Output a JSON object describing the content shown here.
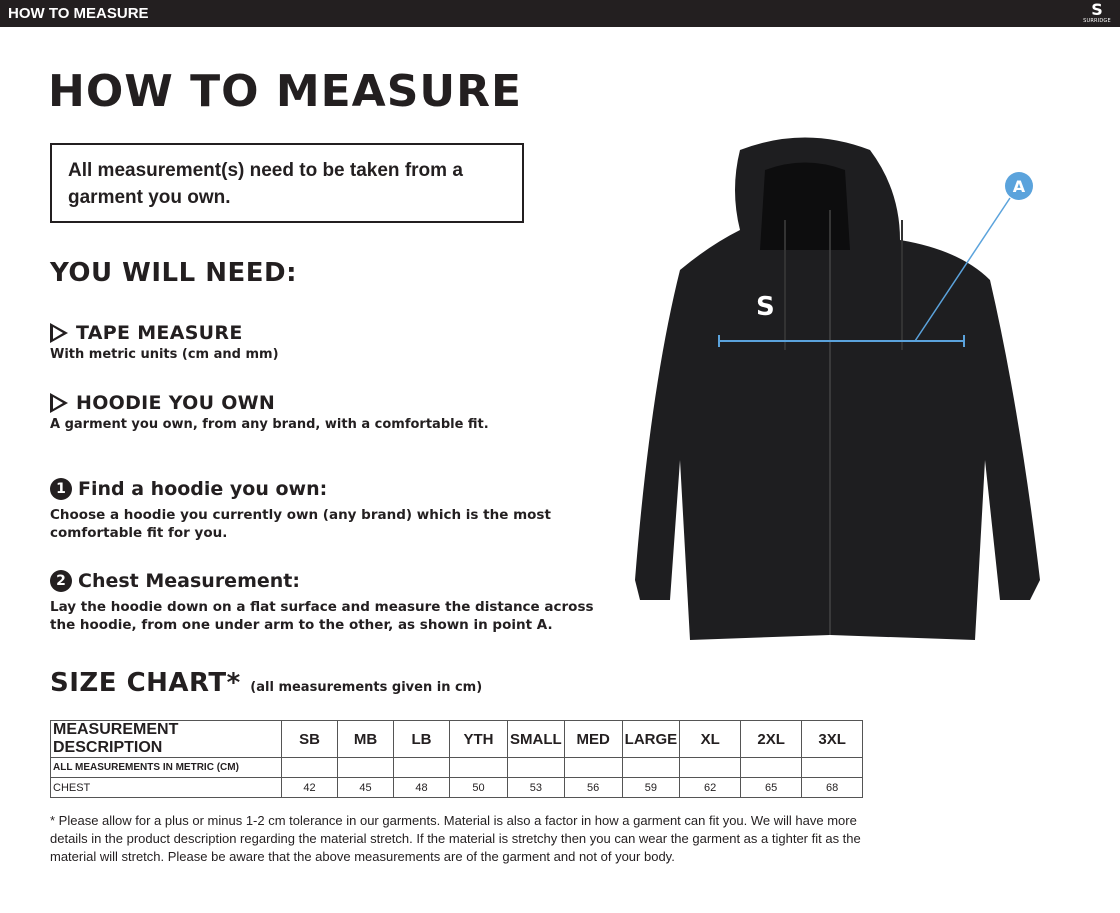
{
  "header": {
    "title": "HOW TO MEASURE",
    "logo_text": "SURRIDGE"
  },
  "title": "HOW TO MEASURE",
  "notice": "All measurement(s) need to be taken from a garment you own.",
  "need": {
    "heading": "YOU WILL NEED:",
    "items": [
      {
        "title": "TAPE MEASURE",
        "desc": "With metric units (cm and mm)"
      },
      {
        "title": "HOODIE YOU OWN",
        "desc": "A garment you own, from any brand, with a comfortable fit."
      }
    ]
  },
  "steps": [
    {
      "num": "1",
      "title": "Find a hoodie you own:",
      "desc": "Choose a hoodie you currently own (any brand) which is the most comfortable fit for you."
    },
    {
      "num": "2",
      "title": "Chest Measurement:",
      "desc": "Lay the hoodie down on a flat surface and measure the distance across the hoodie, from one under arm to the other, as shown in point A."
    }
  ],
  "diagram": {
    "point_label": "A",
    "accent": "#5ba3dc"
  },
  "size_chart": {
    "title": "SIZE CHART",
    "asterisk": "*",
    "subtitle": "(all measurements given in cm)",
    "header": [
      "MEASUREMENT DESCRIPTION",
      "SB",
      "MB",
      "LB",
      "YTH",
      "SMALL",
      "MED",
      "LARGE",
      "XL",
      "2XL",
      "3XL"
    ],
    "metric_row": "ALL MEASUREMENTS IN METRIC (CM)",
    "rows": [
      {
        "label": "CHEST",
        "values": [
          "42",
          "45",
          "48",
          "50",
          "53",
          "56",
          "59",
          "62",
          "65",
          "68"
        ]
      }
    ]
  },
  "footnote": "* Please allow for a plus or minus 1-2 cm tolerance in our garments. Material is also a factor in how a garment can fit you. We will have more details in the product description regarding the material stretch.  If the material is stretchy then you can wear the garment as a tighter fit as the material will stretch.  Please be aware that the above measurements are of the garment and not of your body."
}
